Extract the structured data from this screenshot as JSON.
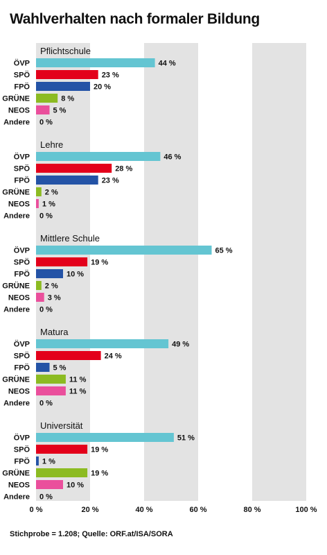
{
  "chart_data": {
    "type": "bar",
    "title": "Wahlverhalten nach formaler Bildung",
    "categories": [
      "ÖVP",
      "SPÖ",
      "FPÖ",
      "GRÜNE",
      "NEOS",
      "Andere"
    ],
    "colors": [
      "#64c5d2",
      "#e3001b",
      "#2453a6",
      "#8cbb22",
      "#ea4f9c",
      "#999999"
    ],
    "groups": [
      {
        "name": "Pflichtschule",
        "values": [
          44,
          23,
          20,
          8,
          5,
          0
        ]
      },
      {
        "name": "Lehre",
        "values": [
          46,
          28,
          23,
          2,
          1,
          0
        ]
      },
      {
        "name": "Mittlere Schule",
        "values": [
          65,
          19,
          10,
          2,
          3,
          0
        ]
      },
      {
        "name": "Matura",
        "values": [
          49,
          24,
          5,
          11,
          11,
          0
        ]
      },
      {
        "name": "Universität",
        "values": [
          51,
          19,
          1,
          19,
          10,
          0
        ]
      }
    ],
    "value_suffix": " %",
    "xlim": [
      0,
      100
    ],
    "xticks": [
      0,
      20,
      40,
      60,
      80,
      100
    ],
    "xtick_labels": [
      "0 %",
      "20 %",
      "40 %",
      "60 %",
      "80 %",
      "100 %"
    ],
    "orientation": "horizontal",
    "grid": "alternating bands"
  },
  "footer": "Stichprobe = 1.208; Quelle: ORF.at/ISA/SORA"
}
